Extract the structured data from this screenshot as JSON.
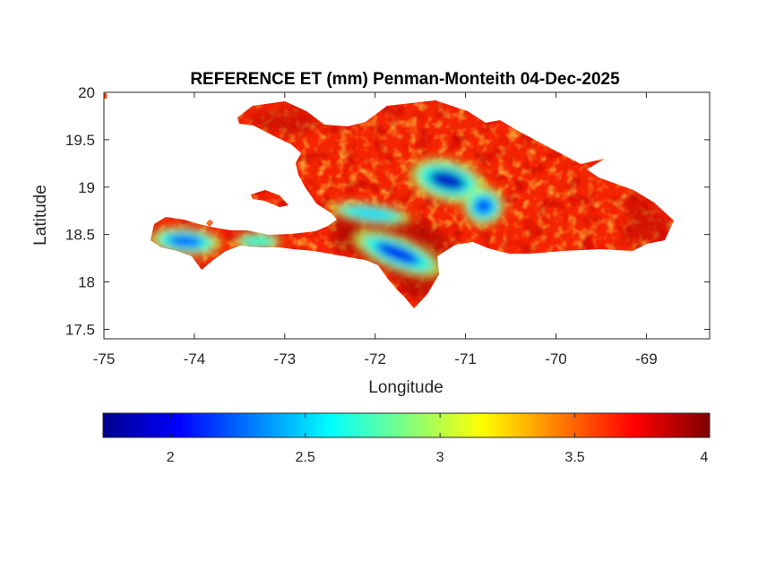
{
  "chart_data": {
    "type": "heatmap",
    "title": "REFERENCE ET (mm) Penman-Monteith 04-Dec-2025",
    "xlabel": "Longitude",
    "ylabel": "Latitude",
    "xlim": [
      -75,
      -68.3
    ],
    "ylim": [
      17.4,
      20
    ],
    "xticks": [
      -75,
      -74,
      -73,
      -72,
      -71,
      -70,
      -69
    ],
    "xtick_labels": [
      "-75",
      "-74",
      "-73",
      "-72",
      "-71",
      "-70",
      "-69"
    ],
    "yticks": [
      17.5,
      18,
      18.5,
      19,
      19.5,
      20
    ],
    "ytick_labels": [
      "17.5",
      "18",
      "18.5",
      "19",
      "19.5",
      "20"
    ],
    "colorbar": {
      "colormap": "jet",
      "clim": [
        1.75,
        4
      ],
      "ticks": [
        2,
        2.5,
        3,
        3.5,
        4
      ],
      "tick_labels": [
        "2",
        "2.5",
        "3",
        "3.5",
        "4"
      ]
    },
    "grid": false,
    "low_value_zones": [
      {
        "lon": -74.1,
        "lat": 18.43,
        "value": 2.2
      },
      {
        "lon": -71.2,
        "lat": 19.07,
        "value": 1.9
      },
      {
        "lon": -70.8,
        "lat": 18.8,
        "value": 2.2
      },
      {
        "lon": -71.75,
        "lat": 18.3,
        "value": 2.0
      },
      {
        "lon": -72.05,
        "lat": 18.72,
        "value": 2.5
      },
      {
        "lon": -73.3,
        "lat": 18.43,
        "value": 2.7
      }
    ]
  }
}
